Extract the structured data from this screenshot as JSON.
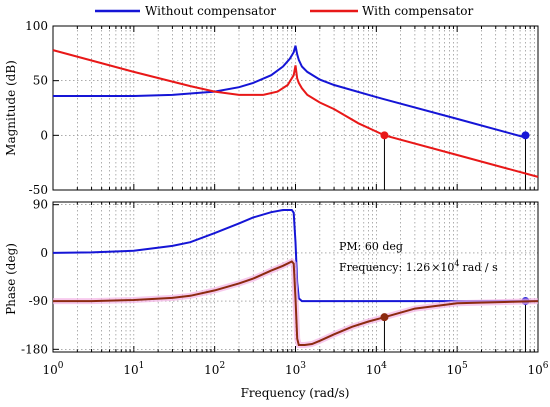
{
  "chart_data": [
    {
      "type": "line",
      "panel": "magnitude",
      "xscale": "log",
      "xlim": [
        1,
        1000000
      ],
      "ylim": [
        -50,
        100
      ],
      "ylabel": "Magnitude (dB)",
      "yticks": [
        "100",
        "50",
        "0",
        "-50"
      ],
      "grid": true,
      "series": [
        {
          "name": "Without compensator",
          "color": "#1515d6",
          "x": [
            1,
            10,
            30,
            100,
            200,
            300,
            500,
            700,
            850,
            950,
            1000,
            1050,
            1100,
            1200,
            1400,
            2000,
            3000,
            10000,
            100000,
            700000
          ],
          "y": [
            36,
            36,
            37,
            40,
            44,
            48,
            55,
            63,
            70,
            76,
            82,
            74,
            69,
            63,
            58,
            51,
            46,
            35,
            15,
            -2
          ],
          "marker": {
            "x": 700000,
            "y": 0
          }
        },
        {
          "name": "With compensator",
          "color": "#e81818",
          "x": [
            1,
            10,
            50,
            100,
            200,
            400,
            600,
            800,
            950,
            1000,
            1050,
            1100,
            1200,
            1400,
            2000,
            3000,
            6000,
            12600,
            100000,
            1000000
          ],
          "y": [
            78,
            58,
            45,
            40,
            37,
            37,
            40,
            46,
            55,
            64,
            52,
            48,
            43,
            37,
            30,
            24,
            11,
            0,
            -18,
            -38
          ],
          "marker": {
            "x": 12600,
            "y": 0
          }
        }
      ]
    },
    {
      "type": "line",
      "panel": "phase",
      "xscale": "log",
      "xlim": [
        1,
        1000000
      ],
      "ylim": [
        -185,
        95
      ],
      "xlabel": "Frequency (rad/s)",
      "ylabel": "Phase (deg)",
      "yticks": [
        "90",
        "0",
        "-90",
        "-180"
      ],
      "xticks": [
        "10",
        "10",
        "10",
        "10",
        "10",
        "10",
        "10"
      ],
      "xtick_exponents": [
        "0",
        "1",
        "2",
        "3",
        "4",
        "5",
        "6"
      ],
      "grid": true,
      "annotations": {
        "pm": "PM: 60 deg",
        "freq_prefix": "Frequency: 1.26",
        "freq_times": "×",
        "freq_base": "10",
        "freq_exp": "4",
        "freq_unit": "rad / s"
      },
      "series": [
        {
          "name": "Without compensator",
          "color": "#1515d6",
          "x": [
            1,
            3,
            10,
            30,
            50,
            100,
            200,
            300,
            500,
            700,
            900,
            950,
            1000,
            1050,
            1100,
            1200,
            1500,
            2000,
            10000,
            100000,
            1000000
          ],
          "y": [
            0,
            1,
            4,
            13,
            20,
            37,
            55,
            66,
            76,
            80,
            80,
            75,
            20,
            -55,
            -85,
            -90,
            -90,
            -90,
            -90,
            -90,
            -90
          ],
          "marker": {
            "x": 700000,
            "y": -90
          }
        },
        {
          "name": "With compensator",
          "color": "#8c2a10",
          "x": [
            1,
            3,
            10,
            30,
            50,
            100,
            200,
            300,
            500,
            700,
            900,
            950,
            1000,
            1050,
            1100,
            1300,
            1600,
            2000,
            3000,
            5000,
            8000,
            12600,
            30000,
            100000,
            1000000
          ],
          "y": [
            -90,
            -90,
            -88,
            -84,
            -80,
            -70,
            -57,
            -48,
            -33,
            -24,
            -16,
            -20,
            -85,
            -160,
            -172,
            -172,
            -170,
            -164,
            -152,
            -138,
            -128,
            -120,
            -104,
            -94,
            -90
          ],
          "marker": {
            "x": 12600,
            "y": -120
          }
        }
      ]
    }
  ]
}
